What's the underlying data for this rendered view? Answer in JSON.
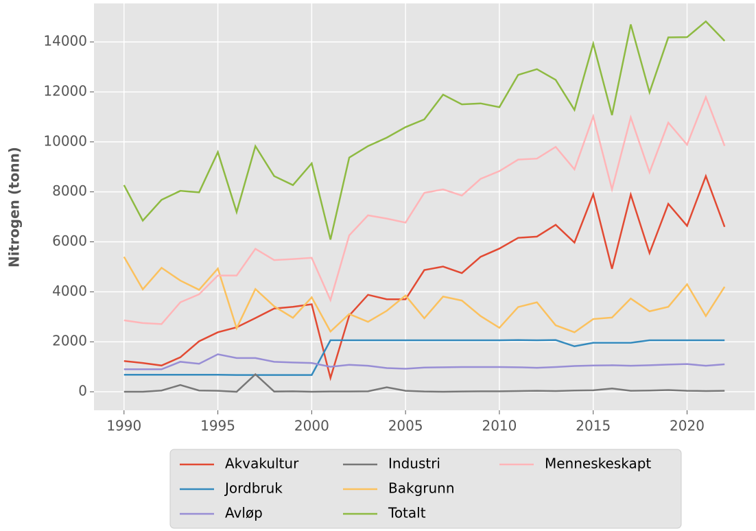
{
  "chart_data": {
    "type": "line",
    "ylabel": "Nitrogen (tonn)",
    "x": [
      1990,
      1991,
      1992,
      1993,
      1994,
      1995,
      1996,
      1997,
      1998,
      1999,
      2000,
      2001,
      2002,
      2003,
      2004,
      2005,
      2006,
      2007,
      2008,
      2009,
      2010,
      2011,
      2012,
      2013,
      2014,
      2015,
      2016,
      2017,
      2018,
      2019,
      2020,
      2021,
      2022
    ],
    "series": [
      {
        "name": "Akvakultur",
        "color": "#e24a33",
        "values": [
          1230,
          1150,
          1050,
          1380,
          2020,
          2380,
          2580,
          2950,
          3330,
          3400,
          3500,
          550,
          3050,
          3880,
          3700,
          3700,
          4870,
          5010,
          4750,
          5400,
          5730,
          6160,
          6210,
          6680,
          5970,
          7900,
          4920,
          7890,
          5550,
          7520,
          6640,
          8630,
          6600
        ]
      },
      {
        "name": "Jordbruk",
        "color": "#348abd",
        "values": [
          680,
          680,
          680,
          680,
          680,
          680,
          670,
          670,
          670,
          670,
          670,
          2060,
          2060,
          2060,
          2060,
          2060,
          2060,
          2060,
          2060,
          2060,
          2060,
          2070,
          2060,
          2070,
          1820,
          1960,
          1960,
          1960,
          2060,
          2060,
          2060,
          2060,
          2060
        ]
      },
      {
        "name": "Avløp",
        "color": "#988ed5",
        "values": [
          900,
          900,
          900,
          1200,
          1120,
          1500,
          1350,
          1350,
          1200,
          1170,
          1150,
          1000,
          1080,
          1040,
          950,
          920,
          970,
          980,
          990,
          990,
          990,
          980,
          960,
          990,
          1030,
          1050,
          1060,
          1040,
          1060,
          1090,
          1110,
          1040,
          1100
        ]
      },
      {
        "name": "Industri",
        "color": "#777777",
        "values": [
          0,
          0,
          50,
          270,
          50,
          40,
          0,
          700,
          10,
          20,
          0,
          10,
          10,
          20,
          180,
          40,
          10,
          0,
          10,
          20,
          20,
          30,
          40,
          30,
          50,
          60,
          130,
          40,
          50,
          70,
          40,
          30,
          40
        ]
      },
      {
        "name": "Bakgrunn",
        "color": "#fbc15e",
        "values": [
          5400,
          4100,
          4960,
          4450,
          4080,
          4930,
          2540,
          4110,
          3420,
          2960,
          3780,
          2410,
          3110,
          2800,
          3240,
          3850,
          2940,
          3810,
          3650,
          3030,
          2560,
          3390,
          3580,
          2660,
          2380,
          2910,
          2970,
          3730,
          3220,
          3400,
          4300,
          3030,
          4200
        ]
      },
      {
        "name": "Totalt",
        "color": "#8eba42",
        "values": [
          8270,
          6850,
          7680,
          8040,
          7980,
          9590,
          7190,
          9830,
          8630,
          8270,
          9140,
          6090,
          9370,
          9830,
          10170,
          10590,
          10900,
          11890,
          11500,
          11540,
          11390,
          12680,
          12910,
          12480,
          11280,
          13930,
          11070,
          14700,
          11980,
          14180,
          14190,
          14820,
          14040
        ]
      },
      {
        "name": "Menneskeskapt",
        "color": "#ffb5b8",
        "values": [
          2860,
          2750,
          2710,
          3580,
          3900,
          4650,
          4650,
          5720,
          5270,
          5310,
          5360,
          3670,
          6260,
          7060,
          6930,
          6770,
          7960,
          8100,
          7850,
          8520,
          8830,
          9290,
          9330,
          9800,
          8900,
          11020,
          8100,
          10980,
          8780,
          10770,
          9890,
          11790,
          9840
        ]
      }
    ],
    "xlim": [
      1988.4,
      2023.6
    ],
    "xticks": [
      1990,
      1995,
      2000,
      2005,
      2010,
      2015,
      2020
    ],
    "ylim": [
      -740,
      15540
    ],
    "yticks": [
      0,
      2000,
      4000,
      6000,
      8000,
      10000,
      12000,
      14000
    ],
    "grid": true
  }
}
